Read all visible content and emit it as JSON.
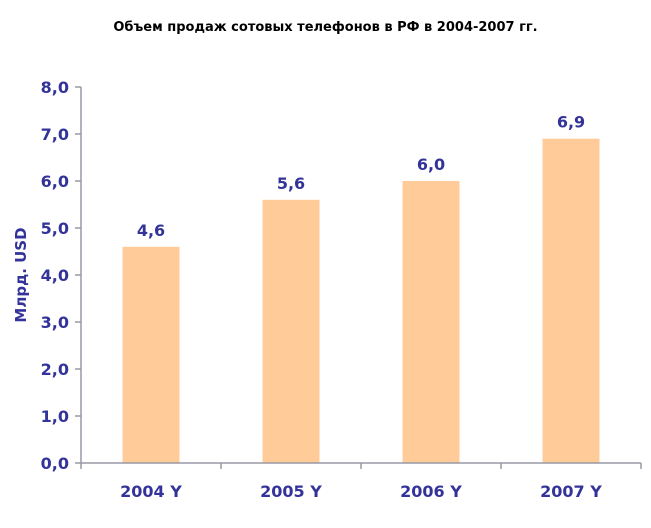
{
  "chart_data": {
    "type": "bar",
    "title": "Объем продаж сотовых телефонов в РФ в 2004-2007 гг.",
    "xlabel": "",
    "ylabel": "Млрд. USD",
    "categories": [
      "2004 Y",
      "2005 Y",
      "2006 Y",
      "2007 Y"
    ],
    "values": [
      4.6,
      5.6,
      6.0,
      6.9
    ],
    "data_labels": [
      "4,6",
      "5,6",
      "6,0",
      "6,9"
    ],
    "ylim": [
      0,
      8
    ],
    "yticks": [
      0,
      1,
      2,
      3,
      4,
      5,
      6,
      7,
      8
    ],
    "ytick_labels": [
      "0,0",
      "1,0",
      "2,0",
      "3,0",
      "4,0",
      "5,0",
      "6,0",
      "7,0",
      "8,0"
    ],
    "grid": false,
    "legend": "none",
    "colors": {
      "bar": "#FFCC99",
      "axis": "#9999A6",
      "text": "#333399"
    }
  }
}
